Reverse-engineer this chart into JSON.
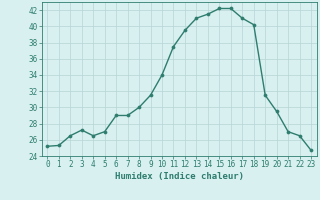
{
  "x": [
    0,
    1,
    2,
    3,
    4,
    5,
    6,
    7,
    8,
    9,
    10,
    11,
    12,
    13,
    14,
    15,
    16,
    17,
    18,
    19,
    20,
    21,
    22,
    23
  ],
  "y": [
    25.2,
    25.3,
    26.5,
    27.2,
    26.5,
    27.0,
    29.0,
    29.0,
    30.0,
    31.5,
    34.0,
    37.5,
    39.5,
    41.0,
    41.5,
    42.2,
    42.2,
    41.0,
    40.2,
    31.5,
    29.5,
    27.0,
    26.5,
    24.7
  ],
  "line_color": "#2e7d6e",
  "marker": "o",
  "marker_size": 2.2,
  "bg_color": "#d8f0f0",
  "grid_color": "#b8d4d4",
  "xlabel": "Humidex (Indice chaleur)",
  "ylabel": "",
  "ylim": [
    24,
    43
  ],
  "xlim": [
    -0.5,
    23.5
  ],
  "yticks": [
    24,
    26,
    28,
    30,
    32,
    34,
    36,
    38,
    40,
    42
  ],
  "xticks": [
    0,
    1,
    2,
    3,
    4,
    5,
    6,
    7,
    8,
    9,
    10,
    11,
    12,
    13,
    14,
    15,
    16,
    17,
    18,
    19,
    20,
    21,
    22,
    23
  ],
  "tick_label_fontsize": 5.5,
  "xlabel_fontsize": 6.5,
  "line_width": 1.0
}
